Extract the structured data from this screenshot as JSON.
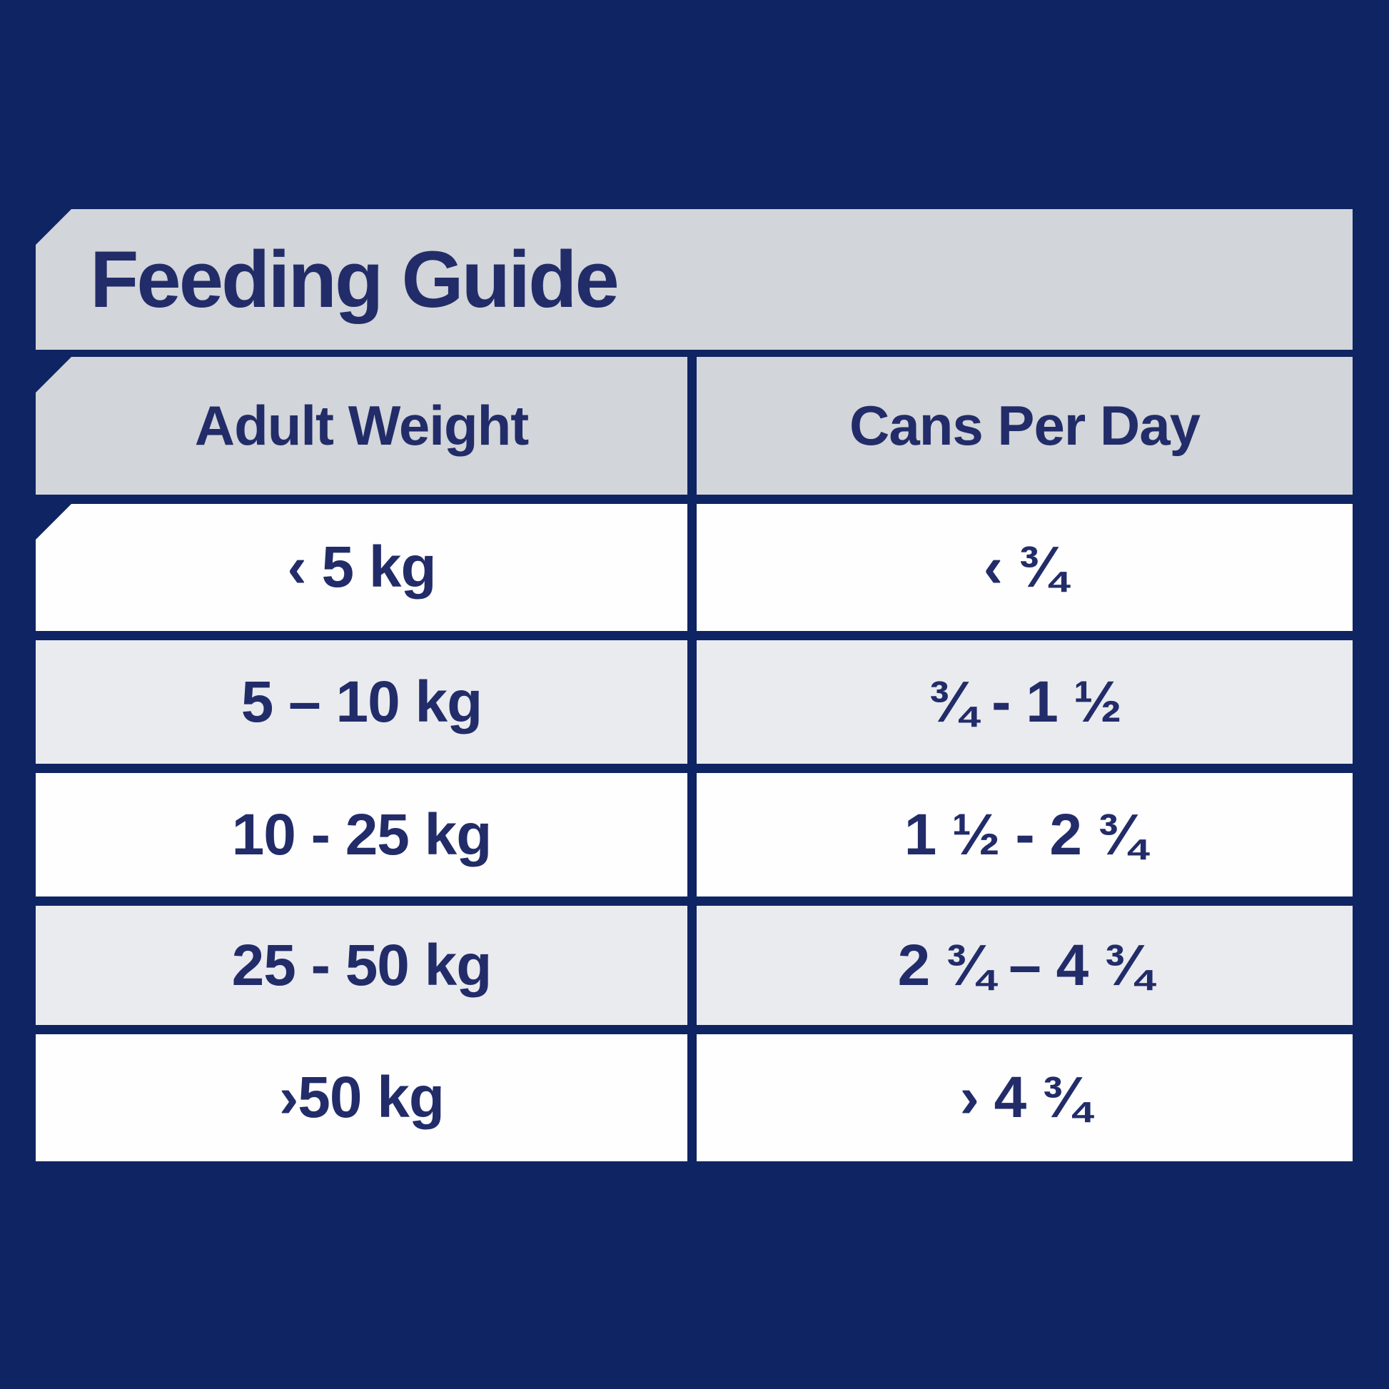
{
  "title": "Feeding Guide",
  "columns": [
    {
      "label": "Adult Weight"
    },
    {
      "label": "Cans Per Day"
    }
  ],
  "rows": [
    {
      "adult_weight": "‹ 5 kg",
      "cans_per_day": "‹ ¾"
    },
    {
      "adult_weight": "5 – 10 kg",
      "cans_per_day": "¾ - 1 ½"
    },
    {
      "adult_weight": "10 - 25 kg",
      "cans_per_day": "1 ½ - 2 ¾"
    },
    {
      "adult_weight": "25 - 50 kg",
      "cans_per_day": "2 ¾ – 4 ¾"
    },
    {
      "adult_weight": "›50 kg",
      "cans_per_day": "› 4 ¾"
    }
  ],
  "colors": {
    "background_navy": "#0f2463",
    "band_gray": "#d2d5d9",
    "stripe_gray": "#e9ebef",
    "row_white": "#fefefe",
    "text_navy": "#222c69"
  },
  "chart_data": {
    "type": "table",
    "title": "Feeding Guide",
    "columns": [
      "Adult Weight",
      "Cans Per Day"
    ],
    "rows": [
      [
        "‹ 5 kg",
        "‹ ¾"
      ],
      [
        "5 – 10 kg",
        "¾ - 1 ½"
      ],
      [
        "10 - 25 kg",
        "1 ½ - 2 ¾"
      ],
      [
        "25 - 50 kg",
        "2 ¾ – 4 ¾"
      ],
      [
        "›50 kg",
        "› 4 ¾"
      ]
    ]
  }
}
